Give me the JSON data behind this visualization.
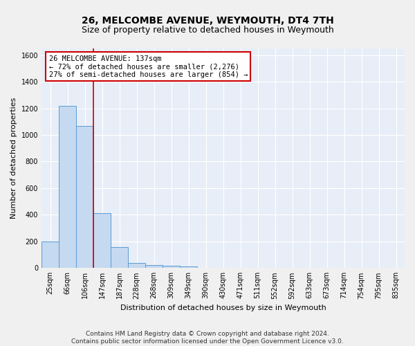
{
  "title": "26, MELCOMBE AVENUE, WEYMOUTH, DT4 7TH",
  "subtitle": "Size of property relative to detached houses in Weymouth",
  "xlabel": "Distribution of detached houses by size in Weymouth",
  "ylabel": "Number of detached properties",
  "categories": [
    "25sqm",
    "66sqm",
    "106sqm",
    "147sqm",
    "187sqm",
    "228sqm",
    "268sqm",
    "309sqm",
    "349sqm",
    "390sqm",
    "430sqm",
    "471sqm",
    "511sqm",
    "552sqm",
    "592sqm",
    "633sqm",
    "673sqm",
    "714sqm",
    "754sqm",
    "795sqm",
    "835sqm"
  ],
  "values": [
    200,
    1220,
    1070,
    410,
    160,
    40,
    20,
    15,
    10,
    0,
    0,
    0,
    0,
    0,
    0,
    0,
    0,
    0,
    0,
    0,
    0
  ],
  "bar_color": "#c5d9f0",
  "bar_edge_color": "#5b9bd5",
  "vline_x_index": 2,
  "vline_color": "#cc0000",
  "annotation_text": "26 MELCOMBE AVENUE: 137sqm\n← 72% of detached houses are smaller (2,276)\n27% of semi-detached houses are larger (854) →",
  "annotation_box_color": "#ffffff",
  "annotation_box_edge_color": "#cc0000",
  "ylim": [
    0,
    1650
  ],
  "yticks": [
    0,
    200,
    400,
    600,
    800,
    1000,
    1200,
    1400,
    1600
  ],
  "footnote": "Contains HM Land Registry data © Crown copyright and database right 2024.\nContains public sector information licensed under the Open Government Licence v3.0.",
  "bg_color": "#e8eef7",
  "grid_color": "#ffffff",
  "fig_bg_color": "#f0f0f0",
  "title_fontsize": 10,
  "subtitle_fontsize": 9,
  "annotation_fontsize": 7.5,
  "axis_label_fontsize": 8,
  "tick_fontsize": 7,
  "footnote_fontsize": 6.5
}
